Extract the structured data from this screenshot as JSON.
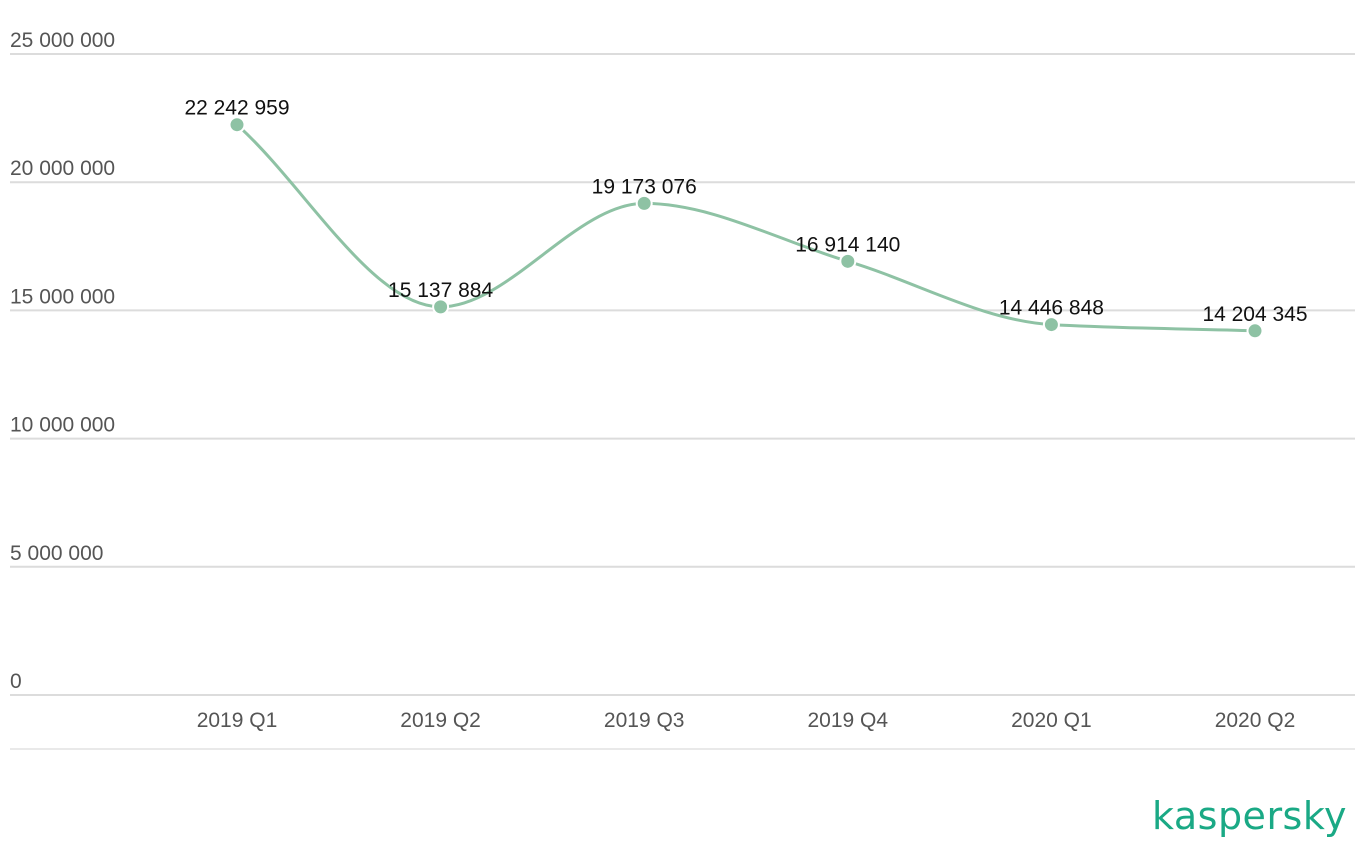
{
  "chart_data": {
    "type": "line",
    "categories": [
      "2019 Q1",
      "2019 Q2",
      "2019 Q3",
      "2019 Q4",
      "2020 Q1",
      "2020 Q2"
    ],
    "values": [
      22242959,
      15137884,
      19173076,
      16914140,
      14446848,
      14204345
    ],
    "data_labels": [
      "22 242 959",
      "15 137 884",
      "19 173 076",
      "16 914 140",
      "14 446 848",
      "14 204 345"
    ],
    "yticks": [
      0,
      5000000,
      10000000,
      15000000,
      20000000,
      25000000
    ],
    "ytick_labels": [
      "0",
      "5 000 000",
      "10 000 000",
      "15 000 000",
      "20 000 000",
      "25 000 000"
    ],
    "ylim": [
      0,
      25000000
    ],
    "grid": true,
    "smooth": true,
    "line_color": "#8ec2a4",
    "marker_color": "#8ec2a4"
  },
  "brand": {
    "logo_text": "kaspersky",
    "color": "#1aa985"
  }
}
